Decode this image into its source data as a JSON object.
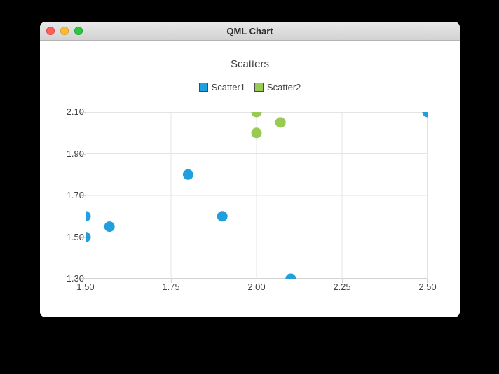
{
  "window": {
    "title": "QML Chart",
    "controls": [
      {
        "name": "close",
        "color": "#ff5f57",
        "border": "#dd4a41"
      },
      {
        "name": "minimize",
        "color": "#fdbc2f",
        "border": "#dd9f27"
      },
      {
        "name": "zoom",
        "color": "#2ac83e",
        "border": "#21a532"
      }
    ]
  },
  "chart_data": {
    "type": "scatter",
    "title": "Scatters",
    "legend_position": "top",
    "grid": true,
    "marker_size": 15,
    "x_axis": {
      "min": 1.5,
      "max": 2.5,
      "tick_step": 0.25,
      "labels": [
        "1.50",
        "1.75",
        "2.00",
        "2.25",
        "2.50"
      ]
    },
    "y_axis": {
      "min": 1.3,
      "max": 2.1,
      "tick_step": 0.2,
      "labels": [
        "1.30",
        "1.50",
        "1.70",
        "1.90",
        "2.10"
      ]
    },
    "series": [
      {
        "name": "Scatter1",
        "color": "#209fdf",
        "points": [
          [
            1.5,
            1.5
          ],
          [
            1.5,
            1.6
          ],
          [
            1.57,
            1.55
          ],
          [
            1.8,
            1.8
          ],
          [
            1.9,
            1.6
          ],
          [
            2.1,
            1.3
          ],
          [
            2.5,
            2.1
          ]
        ]
      },
      {
        "name": "Scatter2",
        "color": "#99ca53",
        "points": [
          [
            2.0,
            2.0
          ],
          [
            2.0,
            2.1
          ],
          [
            2.07,
            2.05
          ]
        ]
      }
    ],
    "colors": {
      "grid": "#e4e4e4",
      "axis": "#d2d2d2",
      "label": "#404044",
      "plot_bg": "#ffffff"
    }
  }
}
